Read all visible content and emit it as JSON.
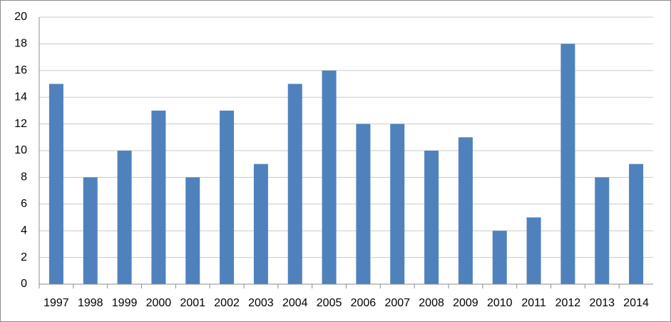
{
  "chart_data": {
    "type": "bar",
    "categories": [
      "1997",
      "1998",
      "1999",
      "2000",
      "2001",
      "2002",
      "2003",
      "2004",
      "2005",
      "2006",
      "2007",
      "2008",
      "2009",
      "2010",
      "2011",
      "2012",
      "2013",
      "2014"
    ],
    "values": [
      15,
      8,
      10,
      13,
      8,
      13,
      9,
      15,
      16,
      12,
      12,
      10,
      11,
      4,
      5,
      18,
      8,
      9
    ],
    "color": "#4f81bd",
    "ylim": [
      0,
      20
    ],
    "yticks": [
      0,
      2,
      4,
      6,
      8,
      10,
      12,
      14,
      16,
      18,
      20
    ],
    "grid": true
  }
}
